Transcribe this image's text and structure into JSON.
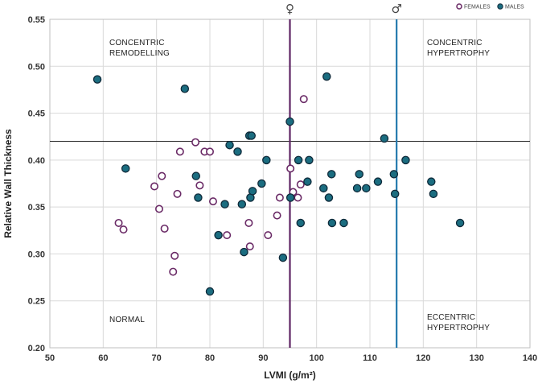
{
  "chart_data": {
    "type": "scatter",
    "xlabel": "LVMI (g/m²)",
    "ylabel": "Relative Wall Thickness",
    "xlim": [
      50,
      140
    ],
    "ylim": [
      0.2,
      0.55
    ],
    "x_ticks": [
      "50",
      "60",
      "70",
      "80",
      "90",
      "100",
      "110",
      "120",
      "130",
      "140"
    ],
    "y_ticks": [
      "0.20",
      "0.25",
      "0.30",
      "0.35",
      "0.40",
      "0.45",
      "0.50",
      "0.55"
    ],
    "grid": true,
    "legend_position": "top-right",
    "legend": [
      {
        "name": "FEMALES",
        "style": "hollow",
        "color": "#6a2a66"
      },
      {
        "name": "MALES",
        "style": "filled",
        "color": "#1b6d80"
      }
    ],
    "reference_lines": [
      {
        "orientation": "horizontal",
        "value": 0.42,
        "color": "#222222"
      },
      {
        "orientation": "vertical",
        "value": 95,
        "color": "#5e2463",
        "symbol": "♀"
      },
      {
        "orientation": "vertical",
        "value": 115,
        "color": "#2379ad",
        "symbol": "♂"
      }
    ],
    "quadrant_labels": [
      {
        "lines": [
          "CONCENTRIC",
          "REMODELLING"
        ],
        "position": "top-left"
      },
      {
        "lines": [
          "CONCENTRIC",
          "HYPERTROPHY"
        ],
        "position": "top-right"
      },
      {
        "lines": [
          "NORMAL"
        ],
        "position": "bottom-left"
      },
      {
        "lines": [
          "ECCENTRIC",
          "HYPERTROPHY"
        ],
        "position": "bottom-right"
      }
    ],
    "series": [
      {
        "name": "FEMALES",
        "points": [
          [
            62.9,
            0.333
          ],
          [
            63.8,
            0.326
          ],
          [
            69.6,
            0.372
          ],
          [
            70.5,
            0.348
          ],
          [
            71.0,
            0.383
          ],
          [
            71.5,
            0.327
          ],
          [
            73.1,
            0.281
          ],
          [
            73.4,
            0.298
          ],
          [
            73.9,
            0.364
          ],
          [
            74.4,
            0.409
          ],
          [
            77.3,
            0.419
          ],
          [
            78.1,
            0.373
          ],
          [
            79.0,
            0.409
          ],
          [
            80.0,
            0.409
          ],
          [
            80.6,
            0.356
          ],
          [
            83.2,
            0.32
          ],
          [
            87.3,
            0.333
          ],
          [
            87.5,
            0.308
          ],
          [
            90.9,
            0.32
          ],
          [
            92.6,
            0.341
          ],
          [
            93.1,
            0.36
          ],
          [
            95.1,
            0.391
          ],
          [
            95.6,
            0.366
          ],
          [
            96.5,
            0.36
          ],
          [
            97.0,
            0.374
          ],
          [
            97.6,
            0.465
          ]
        ]
      },
      {
        "name": "MALES",
        "points": [
          [
            58.9,
            0.486
          ],
          [
            64.2,
            0.391
          ],
          [
            75.3,
            0.476
          ],
          [
            77.4,
            0.383
          ],
          [
            77.8,
            0.36
          ],
          [
            80.0,
            0.26
          ],
          [
            81.6,
            0.32
          ],
          [
            82.8,
            0.353
          ],
          [
            83.7,
            0.416
          ],
          [
            85.2,
            0.409
          ],
          [
            86.0,
            0.353
          ],
          [
            86.4,
            0.302
          ],
          [
            87.4,
            0.426
          ],
          [
            87.6,
            0.36
          ],
          [
            87.8,
            0.426
          ],
          [
            88.0,
            0.367
          ],
          [
            89.7,
            0.375
          ],
          [
            90.6,
            0.4
          ],
          [
            93.7,
            0.296
          ],
          [
            95.0,
            0.441
          ],
          [
            95.1,
            0.36
          ],
          [
            96.6,
            0.4
          ],
          [
            97.0,
            0.333
          ],
          [
            98.3,
            0.377
          ],
          [
            98.6,
            0.4
          ],
          [
            101.3,
            0.37
          ],
          [
            101.9,
            0.489
          ],
          [
            102.3,
            0.36
          ],
          [
            102.8,
            0.385
          ],
          [
            102.9,
            0.333
          ],
          [
            105.1,
            0.333
          ],
          [
            107.6,
            0.37
          ],
          [
            108.0,
            0.385
          ],
          [
            109.3,
            0.37
          ],
          [
            111.5,
            0.377
          ],
          [
            112.7,
            0.423
          ],
          [
            114.5,
            0.385
          ],
          [
            114.7,
            0.364
          ],
          [
            116.7,
            0.4
          ],
          [
            121.5,
            0.377
          ],
          [
            121.9,
            0.364
          ],
          [
            126.9,
            0.333
          ]
        ]
      }
    ]
  }
}
